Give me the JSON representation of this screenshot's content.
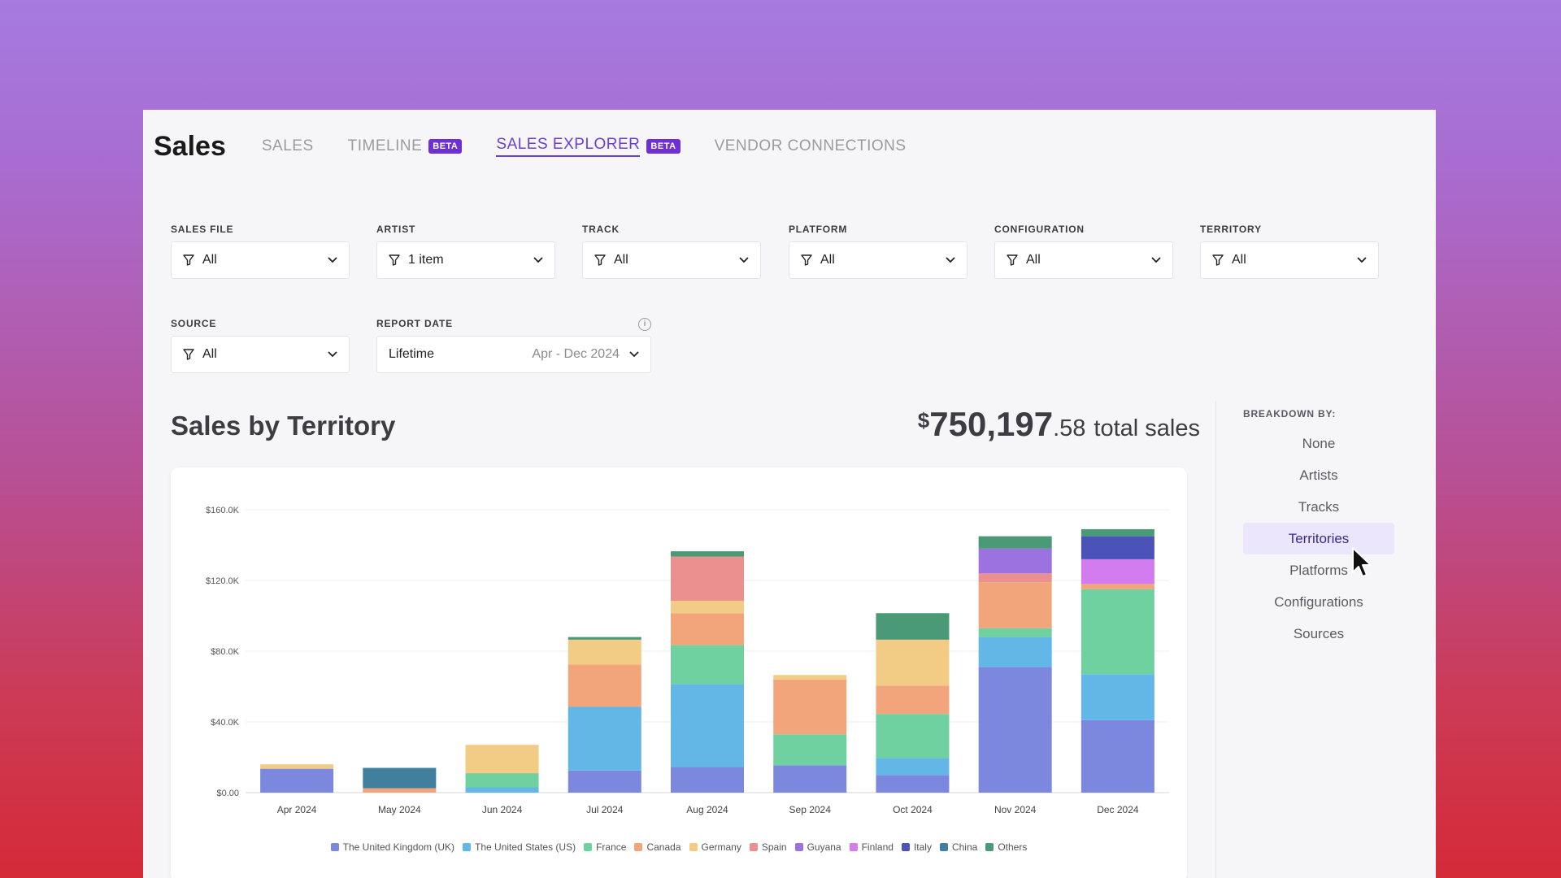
{
  "app": {
    "title": "Sales",
    "tabs": [
      {
        "label": "SALES",
        "badge": null,
        "active": false
      },
      {
        "label": "TIMELINE",
        "badge": "BETA",
        "active": false
      },
      {
        "label": "SALES EXPLORER",
        "badge": "BETA",
        "active": true
      },
      {
        "label": "VENDOR CONNECTIONS",
        "badge": null,
        "active": false
      }
    ]
  },
  "filters": {
    "sales_file": {
      "label": "SALES FILE",
      "value": "All"
    },
    "artist": {
      "label": "ARTIST",
      "value": "1 item"
    },
    "track": {
      "label": "TRACK",
      "value": "All"
    },
    "platform": {
      "label": "PLATFORM",
      "value": "All"
    },
    "configuration": {
      "label": "CONFIGURATION",
      "value": "All"
    },
    "territory": {
      "label": "TERRITORY",
      "value": "All"
    },
    "source": {
      "label": "SOURCE",
      "value": "All"
    },
    "report_date": {
      "label": "REPORT DATE",
      "preset": "Lifetime",
      "range": "Apr - Dec 2024"
    }
  },
  "summary": {
    "title": "Sales by Territory",
    "currency": "$",
    "whole": "750,197",
    "cents": ".58",
    "suffix": "total sales"
  },
  "breakdown": {
    "label": "BREAKDOWN BY:",
    "items": [
      "None",
      "Artists",
      "Tracks",
      "Territories",
      "Platforms",
      "Configurations",
      "Sources"
    ],
    "active": "Territories"
  },
  "colors": {
    "accent": "#6a3fd9",
    "beta_badge": "#6e2fd6"
  },
  "icons": {
    "filter": "funnel-icon",
    "dropdown": "chevron-down-icon",
    "info": "info-icon",
    "pointer": "mouse-cursor-icon"
  },
  "chart_data": {
    "type": "bar",
    "stacked": true,
    "categories": [
      "Apr 2024",
      "May 2024",
      "Jun 2024",
      "Jul 2024",
      "Aug 2024",
      "Sep 2024",
      "Oct 2024",
      "Nov 2024",
      "Dec 2024"
    ],
    "y_ticks": [
      "$0.00",
      "$40.0K",
      "$80.0K",
      "$120.0K",
      "$160.0K"
    ],
    "ylim": [
      0,
      160000
    ],
    "grid": true,
    "legend_position": "bottom",
    "series": [
      {
        "name": "The United Kingdom (UK)",
        "color": "#7b88de",
        "values": [
          13500,
          0,
          0,
          12500,
          14500,
          15500,
          10000,
          71000,
          41000
        ]
      },
      {
        "name": "The United States (US)",
        "color": "#63b7e6",
        "values": [
          0,
          0,
          3000,
          36000,
          47000,
          0,
          9500,
          17000,
          26000
        ]
      },
      {
        "name": "France",
        "color": "#6fd0a0",
        "values": [
          0,
          0,
          8000,
          0,
          22000,
          17500,
          25000,
          5000,
          48000
        ]
      },
      {
        "name": "Canada",
        "color": "#f2a57a",
        "values": [
          0,
          2500,
          0,
          24000,
          18000,
          31000,
          16000,
          26000,
          3000
        ]
      },
      {
        "name": "Germany",
        "color": "#f2cc84",
        "values": [
          2500,
          0,
          16000,
          14000,
          7000,
          2500,
          26000,
          0,
          0
        ]
      },
      {
        "name": "Spain",
        "color": "#ec8f8f",
        "values": [
          0,
          0,
          0,
          0,
          25000,
          0,
          0,
          5000,
          0
        ]
      },
      {
        "name": "Guyana",
        "color": "#9b72e0",
        "values": [
          0,
          0,
          0,
          0,
          0,
          0,
          0,
          14000,
          0
        ]
      },
      {
        "name": "Finland",
        "color": "#d27cf0",
        "values": [
          0,
          0,
          0,
          0,
          0,
          0,
          0,
          0,
          14000
        ]
      },
      {
        "name": "Italy",
        "color": "#4b52b8",
        "values": [
          0,
          0,
          0,
          0,
          0,
          0,
          0,
          0,
          13000
        ]
      },
      {
        "name": "China",
        "color": "#40809e",
        "values": [
          0,
          11500,
          0,
          0,
          0,
          0,
          0,
          0,
          0
        ]
      },
      {
        "name": "Others",
        "color": "#4a9a78",
        "values": [
          0,
          0,
          0,
          1500,
          3000,
          0,
          15000,
          7000,
          4000
        ]
      }
    ]
  }
}
